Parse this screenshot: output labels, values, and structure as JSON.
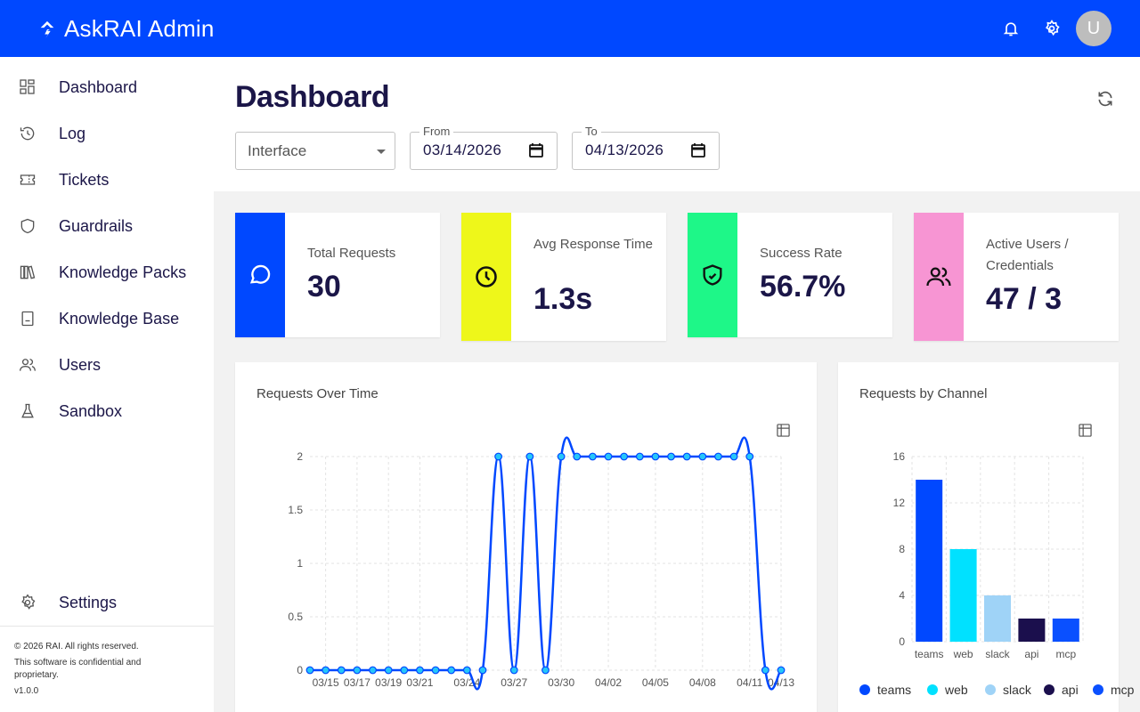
{
  "app": {
    "title": "AskRAI Admin",
    "avatar_initial": "U",
    "brand_color": "#0048ff"
  },
  "sidebar": {
    "items": [
      {
        "label": "Dashboard",
        "icon": "dashboard-icon"
      },
      {
        "label": "Log",
        "icon": "history-icon"
      },
      {
        "label": "Tickets",
        "icon": "ticket-icon"
      },
      {
        "label": "Guardrails",
        "icon": "shield-icon"
      },
      {
        "label": "Knowledge Packs",
        "icon": "books-icon"
      },
      {
        "label": "Knowledge Base",
        "icon": "book-icon"
      },
      {
        "label": "Users",
        "icon": "users-icon"
      },
      {
        "label": "Sandbox",
        "icon": "flask-icon"
      }
    ],
    "settings_label": "Settings",
    "footer": {
      "copyright": "© 2026 RAI. All rights reserved.",
      "notice_line1": "This software is confidential and",
      "notice_line2": "proprietary.",
      "version": "v1.0.0"
    }
  },
  "header": {
    "title": "Dashboard"
  },
  "filters": {
    "interface_placeholder": "Interface",
    "from_label": "From",
    "from_value": "03/14/2026",
    "to_label": "To",
    "to_value": "04/13/2026"
  },
  "stats": [
    {
      "title": "Total Requests",
      "value": "30",
      "color": "#0048ff",
      "icon": "chat-bubble-icon"
    },
    {
      "title": "Avg Response Time",
      "value": "1.3s",
      "color": "#eef71a",
      "icon": "clock-icon"
    },
    {
      "title": "Success Rate",
      "value": "56.7%",
      "color": "#1ef788",
      "icon": "shield-check-icon"
    },
    {
      "title": "Active Users / Credentials",
      "value": "47 / 3",
      "color": "#f795d3",
      "icon": "users-icon"
    }
  ],
  "charts": [
    {
      "title": "Requests Over Time",
      "chart_data": {
        "type": "line",
        "x": [
          "03/14",
          "03/15",
          "03/16",
          "03/17",
          "03/18",
          "03/19",
          "03/20",
          "03/21",
          "03/22",
          "03/23",
          "03/24",
          "03/25",
          "03/26",
          "03/27",
          "03/28",
          "03/29",
          "03/30",
          "03/31",
          "04/01",
          "04/02",
          "04/03",
          "04/04",
          "04/05",
          "04/06",
          "04/07",
          "04/08",
          "04/09",
          "04/10",
          "04/11",
          "04/12",
          "04/13"
        ],
        "x_tick_labels": [
          "03/15",
          "03/17",
          "03/19",
          "03/21",
          "03/24",
          "03/27",
          "03/30",
          "04/02",
          "04/05",
          "04/08",
          "04/11",
          "04/13"
        ],
        "values": [
          0,
          0,
          0,
          0,
          0,
          0,
          0,
          0,
          0,
          0,
          0,
          0,
          2,
          0,
          2,
          0,
          2,
          2,
          2,
          2,
          2,
          2,
          2,
          2,
          2,
          2,
          2,
          2,
          2,
          0,
          0
        ],
        "y_ticks": [
          "0",
          "0.5",
          "1",
          "1.5",
          "2"
        ],
        "ylim": [
          0,
          2
        ],
        "grid": true,
        "line_color": "#0048ff",
        "point_fill": "#26c6f9"
      }
    },
    {
      "title": "Requests by Channel",
      "chart_data": {
        "type": "bar",
        "categories": [
          "teams",
          "web",
          "slack",
          "api",
          "mcp"
        ],
        "values": [
          14,
          8,
          4,
          2,
          2
        ],
        "colors": [
          "#0048ff",
          "#00e1ff",
          "#9fd3f7",
          "#1b0f4d",
          "#0a50ff"
        ],
        "y_ticks": [
          "0",
          "4",
          "8",
          "12",
          "16"
        ],
        "ylim": [
          0,
          16
        ],
        "grid": true,
        "legend": "bottom"
      }
    }
  ]
}
